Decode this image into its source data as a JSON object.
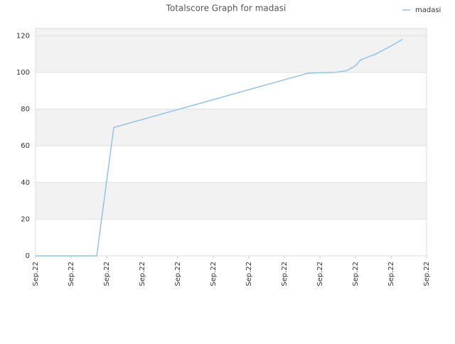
{
  "chart_data": {
    "type": "line",
    "title": "Totalscore Graph for madasi",
    "x": [
      0,
      1.72,
      2.2,
      7.64,
      7.9,
      8.4,
      8.76,
      9.0,
      9.14,
      9.56,
      9.96,
      10.32
    ],
    "series": [
      {
        "name": "madasi",
        "color": "#90c4ee",
        "values": [
          0,
          0,
          70,
          99.5,
          99.8,
          100,
          101,
          103.7,
          106.8,
          110,
          114,
          118
        ]
      }
    ],
    "xlim": [
      0,
      11
    ],
    "xticks": [
      {
        "value": 0,
        "label": "Sep.22"
      },
      {
        "value": 1,
        "label": "Sep.22"
      },
      {
        "value": 2,
        "label": "Sep.22"
      },
      {
        "value": 3,
        "label": "Sep.22"
      },
      {
        "value": 4,
        "label": "Sep.22"
      },
      {
        "value": 5,
        "label": "Sep.22"
      },
      {
        "value": 6,
        "label": "Sep.22"
      },
      {
        "value": 7,
        "label": "Sep.22"
      },
      {
        "value": 8,
        "label": "Sep.22"
      },
      {
        "value": 9,
        "label": "Sep.22"
      },
      {
        "value": 10,
        "label": "Sep.22"
      },
      {
        "value": 11,
        "label": "Sep.22"
      }
    ],
    "ylim": [
      0,
      124
    ],
    "yticks": [
      0,
      20,
      40,
      60,
      80,
      100,
      120
    ],
    "grid": true,
    "legend": "top-right"
  }
}
